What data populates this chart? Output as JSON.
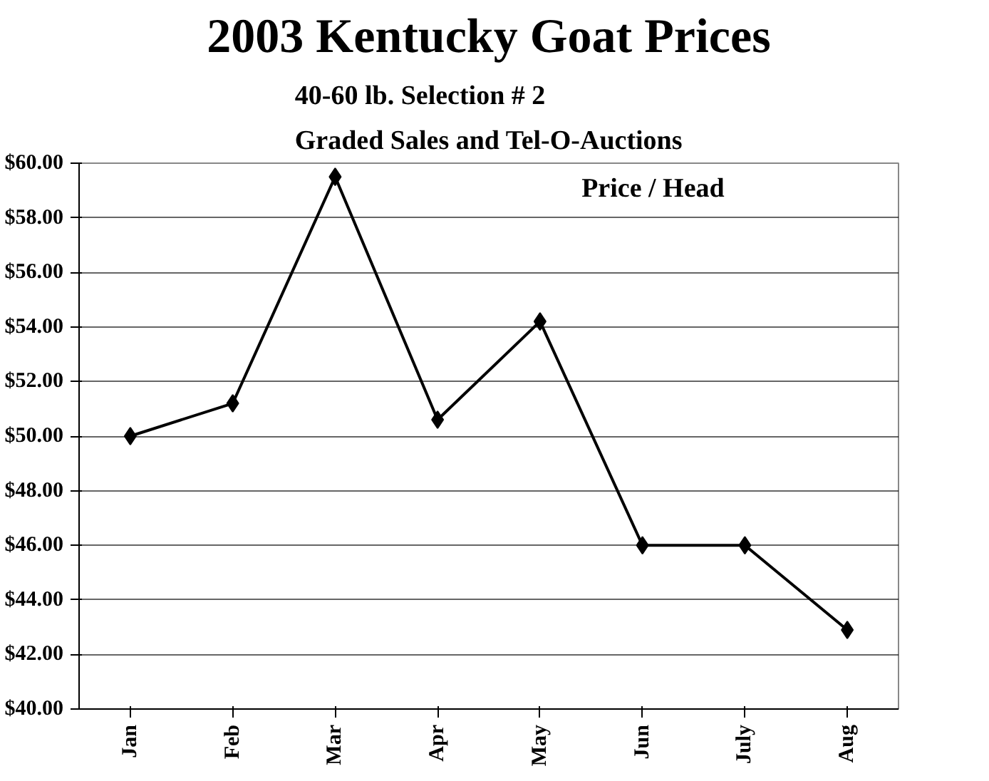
{
  "chart_data": {
    "type": "line",
    "title": "2003 Kentucky Goat Prices",
    "subtitle": "40-60 lb. Selection # 2\nGraded Sales and Tel-O-Auctions",
    "categories": [
      "Jan",
      "Feb",
      "Mar",
      "Apr",
      "May",
      "Jun",
      "July",
      "Aug"
    ],
    "series": [
      {
        "name": "Price / Head",
        "color": "#000000",
        "values": [
          50.0,
          51.2,
          59.5,
          50.6,
          54.2,
          46.0,
          46.0,
          42.9
        ]
      }
    ],
    "ylim": [
      40,
      60
    ],
    "yticks": [
      {
        "value": 40,
        "label": "$40.00"
      },
      {
        "value": 42,
        "label": "$42.00"
      },
      {
        "value": 44,
        "label": "$44.00"
      },
      {
        "value": 46,
        "label": "$46.00"
      },
      {
        "value": 48,
        "label": "$48.00"
      },
      {
        "value": 50,
        "label": "$50.00"
      },
      {
        "value": 52,
        "label": "$52.00"
      },
      {
        "value": 54,
        "label": "$54.00"
      },
      {
        "value": 56,
        "label": "$56.00"
      },
      {
        "value": 58,
        "label": "$58.00"
      },
      {
        "value": 60,
        "label": "$60.00"
      }
    ],
    "grid": "y",
    "legend": "top right",
    "marker": "diamond",
    "line_style": "solid"
  }
}
